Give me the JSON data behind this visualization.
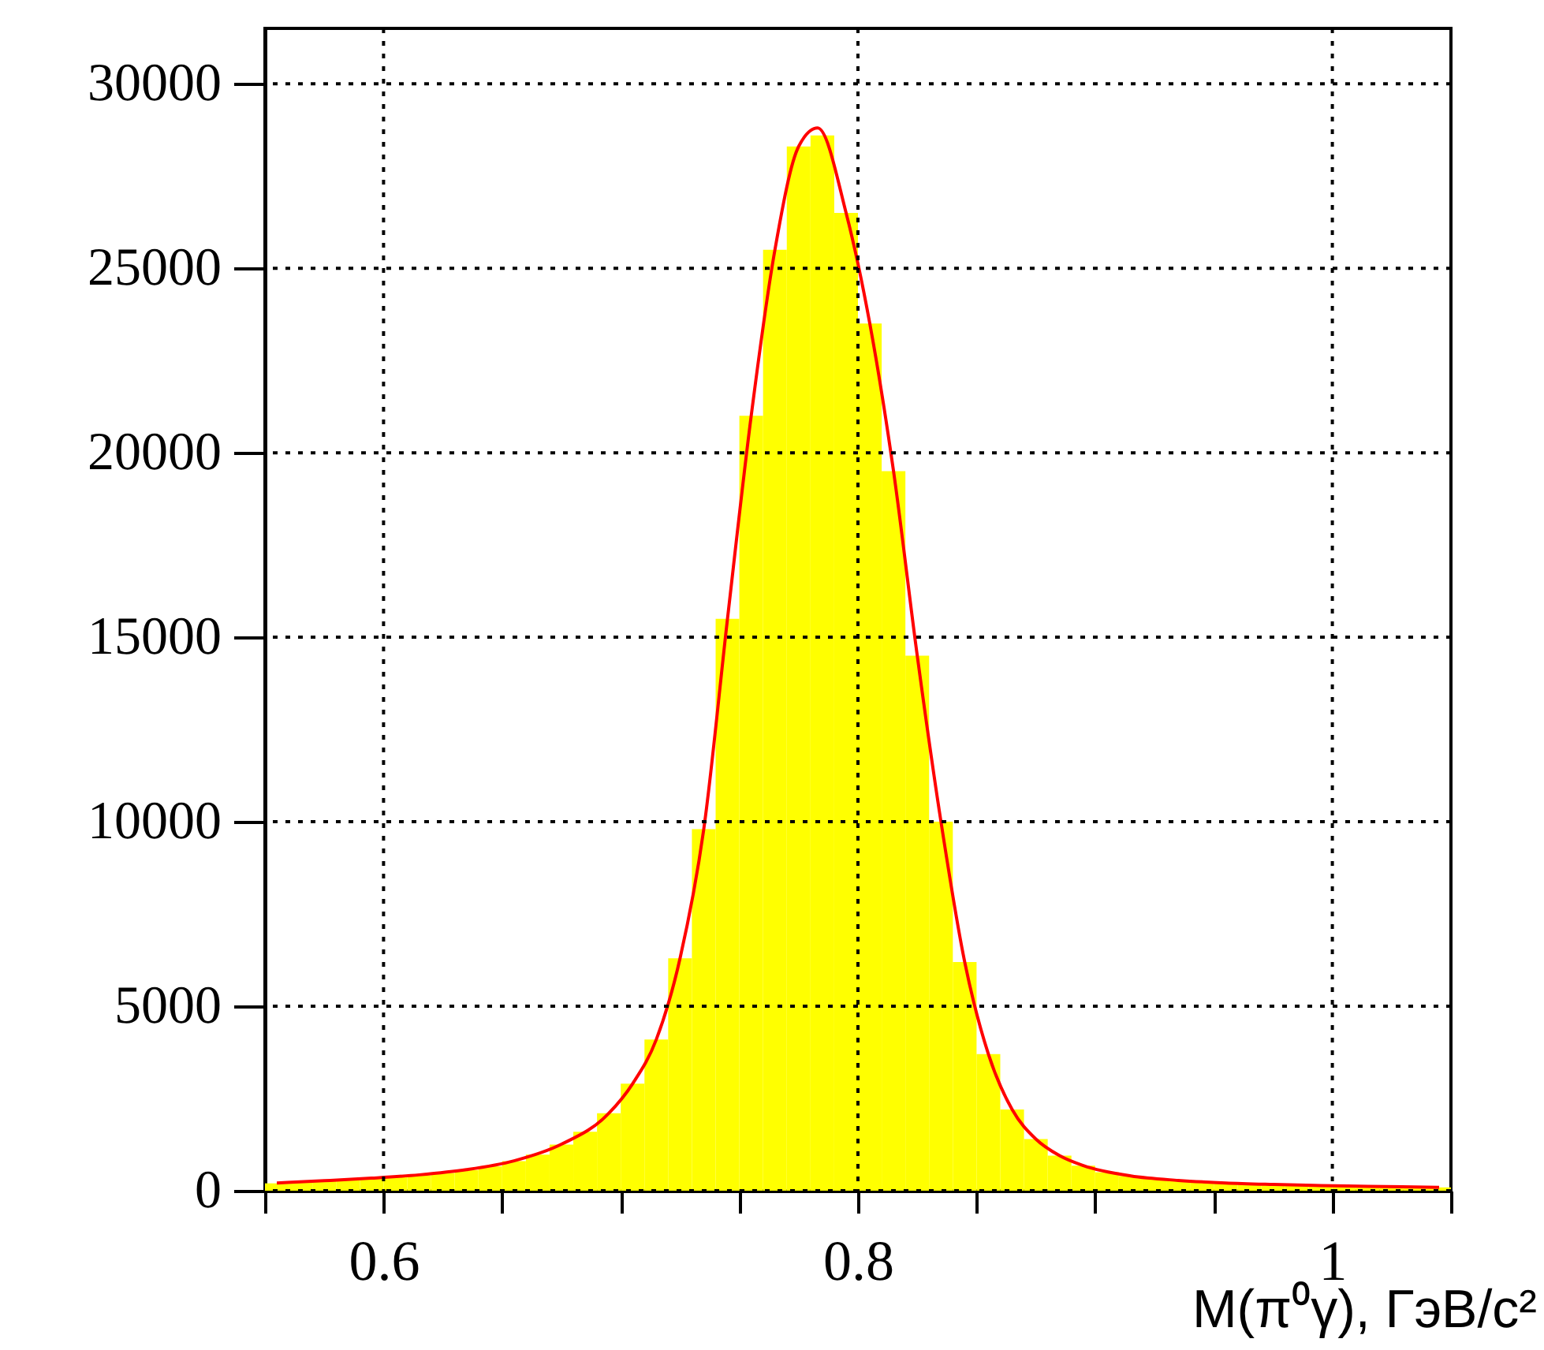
{
  "chart_data": {
    "type": "histogram",
    "xlabel": "M(π⁰γ), ГэВ/с²",
    "bins": [
      0.55,
      0.56,
      0.57,
      0.58,
      0.59,
      0.6,
      0.61,
      0.62,
      0.63,
      0.64,
      0.65,
      0.66,
      0.67,
      0.68,
      0.69,
      0.7,
      0.71,
      0.72,
      0.73,
      0.74,
      0.75,
      0.76,
      0.77,
      0.78,
      0.79,
      0.8,
      0.81,
      0.82,
      0.83,
      0.84,
      0.85,
      0.86,
      0.87,
      0.88,
      0.89,
      0.9,
      0.91,
      0.92,
      0.93,
      0.94,
      0.95,
      0.96,
      0.97,
      0.98,
      0.99,
      1.0,
      1.01,
      1.02,
      1.03,
      1.04,
      1.05
    ],
    "series": [
      {
        "color": "#ffff00",
        "values": [
          200,
          230,
          260,
          300,
          330,
          370,
          420,
          480,
          560,
          660,
          800,
          980,
          1250,
          1600,
          2100,
          2900,
          4100,
          6300,
          9800,
          15500,
          21000,
          25500,
          28300,
          28600,
          26500,
          23500,
          19500,
          14500,
          10000,
          6200,
          3700,
          2200,
          1400,
          950,
          680,
          500,
          400,
          330,
          280,
          240,
          210,
          190,
          170,
          150,
          140,
          130,
          120,
          110,
          100,
          90
        ]
      },
      {
        "type": "line",
        "color": "#ff0000",
        "x": [
          0.555,
          0.575,
          0.595,
          0.615,
          0.635,
          0.655,
          0.675,
          0.695,
          0.705,
          0.715,
          0.725,
          0.735,
          0.745,
          0.755,
          0.765,
          0.775,
          0.783,
          0.795,
          0.805,
          0.815,
          0.825,
          0.835,
          0.845,
          0.855,
          0.865,
          0.875,
          0.885,
          0.895,
          0.915,
          0.935,
          0.955,
          0.975,
          0.995,
          1.015,
          1.045
        ],
        "values": [
          210,
          270,
          340,
          430,
          570,
          810,
          1260,
          2100,
          2900,
          4100,
          6300,
          9800,
          15500,
          21000,
          25500,
          28300,
          28800,
          26500,
          23500,
          19500,
          14500,
          10000,
          6200,
          3700,
          2200,
          1400,
          950,
          680,
          400,
          280,
          210,
          170,
          140,
          120,
          90
        ]
      }
    ],
    "xlim": [
      0.55,
      1.05
    ],
    "xticks": [
      {
        "value": 0.55,
        "label": null
      },
      0.6,
      {
        "value": 0.65,
        "label": null
      },
      {
        "value": 0.7,
        "label": null
      },
      {
        "value": 0.75,
        "label": null
      },
      0.8,
      {
        "value": 0.85,
        "label": null
      },
      {
        "value": 0.9,
        "label": null
      },
      {
        "value": 0.95,
        "label": null
      },
      1,
      {
        "value": 1.05,
        "label": null
      }
    ],
    "ylim": [
      0,
      31500
    ],
    "yticks": [
      0,
      5000,
      10000,
      15000,
      20000,
      25000,
      30000
    ],
    "grid": true
  }
}
